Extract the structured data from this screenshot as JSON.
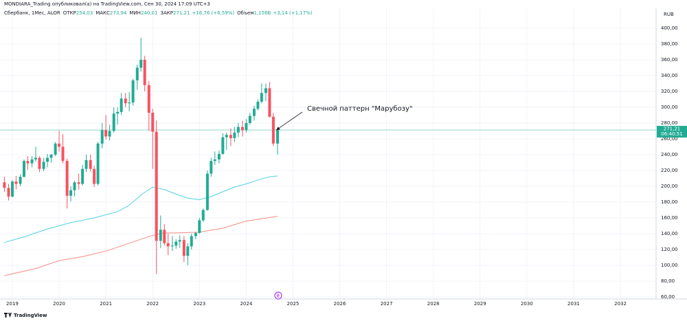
{
  "header": {
    "publisher": "MONDIARA_Trading опубликовал(а) на TradingView.com, Сен 30, 2024 17:09 UTC+3",
    "symbol": "Сбербанк, 1Мес, ALOR",
    "ohlc": [
      {
        "label": "ОТКР",
        "value": "254,03"
      },
      {
        "label": "МАКС",
        "value": "273,94"
      },
      {
        "label": "МИН",
        "value": "240,01"
      },
      {
        "label": "ЗАКР",
        "value": "271,21"
      }
    ],
    "change": "+16,76 (+6,59%)",
    "volume": {
      "label": "Объем",
      "value": "1,156B"
    },
    "volume_change": "+3,14 (+1,17%)"
  },
  "branding": "TradingView",
  "chart_data": {
    "type": "candlestick",
    "currency": "RUB",
    "up_color": "#22ab94",
    "down_color": "#f7525f",
    "x": [
      2018.83,
      2018.92,
      2019.0,
      2019.08,
      2019.17,
      2019.25,
      2019.33,
      2019.42,
      2019.5,
      2019.58,
      2019.67,
      2019.75,
      2019.83,
      2019.92,
      2020.0,
      2020.08,
      2020.17,
      2020.25,
      2020.33,
      2020.42,
      2020.5,
      2020.58,
      2020.67,
      2020.75,
      2020.83,
      2020.92,
      2021.0,
      2021.08,
      2021.17,
      2021.25,
      2021.33,
      2021.42,
      2021.5,
      2021.58,
      2021.67,
      2021.75,
      2021.83,
      2021.92,
      2022.0,
      2022.08,
      2022.17,
      2022.25,
      2022.33,
      2022.42,
      2022.5,
      2022.58,
      2022.67,
      2022.75,
      2022.83,
      2022.92,
      2023.0,
      2023.08,
      2023.17,
      2023.25,
      2023.33,
      2023.42,
      2023.5,
      2023.58,
      2023.67,
      2023.75,
      2023.83,
      2023.92,
      2024.0,
      2024.08,
      2024.17,
      2024.25,
      2024.33,
      2024.42,
      2024.5,
      2024.58,
      2024.67
    ],
    "open": [
      205,
      198,
      187,
      206,
      203,
      212,
      232,
      229,
      234,
      236,
      222,
      231,
      236,
      240,
      254,
      250,
      232,
      188,
      195,
      205,
      203,
      222,
      233,
      222,
      203,
      254,
      271,
      263,
      270,
      292,
      294,
      311,
      305,
      306,
      334,
      350,
      360,
      328,
      293,
      269,
      131,
      145,
      128,
      124,
      125,
      130,
      132,
      112,
      124,
      137,
      141,
      157,
      170,
      216,
      232,
      234,
      241,
      262,
      265,
      261,
      268,
      275,
      271,
      280,
      289,
      298,
      307,
      318,
      324,
      288,
      254.03
    ],
    "high": [
      212,
      203,
      208,
      213,
      215,
      234,
      238,
      238,
      250,
      238,
      236,
      241,
      241,
      256,
      270,
      266,
      235,
      200,
      207,
      216,
      227,
      240,
      240,
      226,
      256,
      280,
      290,
      278,
      300,
      300,
      318,
      318,
      319,
      336,
      354,
      388,
      365,
      333,
      298,
      283,
      163,
      152,
      140,
      137,
      133,
      138,
      137,
      128,
      140,
      142,
      160,
      172,
      220,
      236,
      244,
      245,
      267,
      268,
      273,
      275,
      280,
      283,
      285,
      293,
      302,
      310,
      330,
      330,
      332,
      293,
      273.94
    ],
    "low": [
      193,
      182,
      186,
      196,
      200,
      211,
      221,
      224,
      231,
      218,
      219,
      224,
      230,
      238,
      244,
      229,
      172,
      181,
      187,
      196,
      201,
      218,
      219,
      199,
      201,
      248,
      259,
      258,
      268,
      278,
      290,
      300,
      295,
      302,
      322,
      345,
      320,
      270,
      222,
      89,
      122,
      125,
      113,
      118,
      121,
      122,
      104,
      100,
      120,
      133,
      140,
      155,
      169,
      212,
      227,
      229,
      240,
      246,
      251,
      256,
      262,
      263,
      268,
      278,
      283,
      296,
      305,
      308,
      287,
      251,
      240.01
    ],
    "close": [
      198,
      187,
      206,
      203,
      212,
      232,
      229,
      234,
      236,
      222,
      231,
      236,
      240,
      254,
      250,
      232,
      188,
      195,
      205,
      203,
      222,
      233,
      222,
      203,
      254,
      271,
      263,
      270,
      292,
      294,
      311,
      305,
      306,
      334,
      350,
      360,
      328,
      293,
      269,
      131,
      145,
      128,
      124,
      125,
      130,
      132,
      112,
      124,
      137,
      141,
      157,
      170,
      216,
      232,
      234,
      241,
      262,
      265,
      261,
      268,
      275,
      271,
      280,
      289,
      298,
      307,
      318,
      324,
      288,
      254,
      271.21
    ],
    "series": [
      {
        "color": "#4dd0e1",
        "x": [
          2018.83,
          2019.25,
          2019.75,
          2020.25,
          2020.75,
          2021.25,
          2021.5,
          2021.75,
          2022.0,
          2022.25,
          2022.5,
          2022.75,
          2023.0,
          2023.25,
          2023.5,
          2023.75,
          2024.0,
          2024.25,
          2024.5,
          2024.67
        ],
        "values": [
          129,
          136,
          146,
          154,
          160,
          168,
          176,
          189,
          199,
          196,
          190,
          185,
          183,
          187,
          193,
          199,
          203,
          208,
          212,
          213
        ]
      },
      {
        "color": "#f28b82",
        "x": [
          2018.83,
          2019.5,
          2020.0,
          2020.5,
          2021.0,
          2021.5,
          2022.0,
          2022.25,
          2022.5,
          2023.0,
          2023.5,
          2024.0,
          2024.67
        ],
        "values": [
          87,
          96,
          106,
          111,
          118,
          128,
          138,
          141,
          141,
          142,
          147,
          156,
          162
        ]
      }
    ],
    "last_price": 271.21,
    "last_price_label": "271,21",
    "countdown": "06:40:51",
    "annotation": "Свечной паттерн \"Марубозу\"",
    "xlim": [
      2018.736,
      2032.763
    ],
    "xticks": [
      2019,
      2020,
      2021,
      2022,
      2023,
      2024,
      2025,
      2026,
      2027,
      2028,
      2029,
      2030,
      2031,
      2032
    ],
    "ylim": [
      57.4,
      425.2
    ],
    "yticks": [
      {
        "value": 60,
        "label": "60,00"
      },
      {
        "value": 80,
        "label": "80,00"
      },
      {
        "value": 100,
        "label": "100,00"
      },
      {
        "value": 120,
        "label": "120,00"
      },
      {
        "value": 140,
        "label": "140,00"
      },
      {
        "value": 160,
        "label": "160,00"
      },
      {
        "value": 180,
        "label": "180,00"
      },
      {
        "value": 200,
        "label": "200,00"
      },
      {
        "value": 220,
        "label": "220,00"
      },
      {
        "value": 240,
        "label": "240,00"
      },
      {
        "value": 260,
        "label": "260,00"
      },
      {
        "value": 280,
        "label": "280,00"
      },
      {
        "value": 300,
        "label": "300,00"
      },
      {
        "value": 320,
        "label": "320,00"
      },
      {
        "value": 340,
        "label": "340,00"
      },
      {
        "value": 360,
        "label": "360,00"
      },
      {
        "value": 380,
        "label": "380,00"
      },
      {
        "value": 400,
        "label": "400,00"
      }
    ],
    "grid": true
  }
}
